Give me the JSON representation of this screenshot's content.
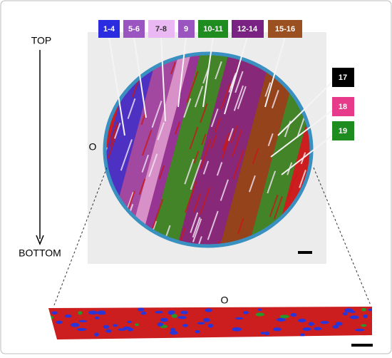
{
  "labels": {
    "top": "TOP",
    "bottom": "BOTTOM",
    "origin_top": "O",
    "origin_bottom": "O"
  },
  "segments": [
    "1-4",
    "5-6",
    "7-8",
    "9",
    "10-11",
    "12-14",
    "15-16",
    "17",
    "18",
    "19"
  ]
}
